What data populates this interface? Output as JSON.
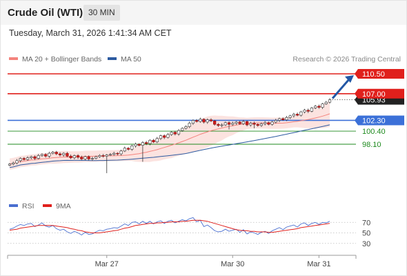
{
  "header": {
    "instrument": "Crude Oil (WTI)",
    "timeframe": "30 MIN"
  },
  "datetime": "Tuesday, March 31, 2026 1:41:34 AM CET",
  "legend": {
    "ma20_label": "MA 20 + Bollinger Bands",
    "ma20_color": "#f4837d",
    "ma50_label": "MA 50",
    "ma50_color": "#2c5aa0"
  },
  "source": "Research © 2026 Trading Central",
  "rsi_legend": {
    "rsi_label": "RSI",
    "rsi_color": "#4a6fd0",
    "ma_label": "9MA",
    "ma_color": "#e0201c"
  },
  "chart_data": [
    {
      "type": "candlestick",
      "x_labels": [
        "Mar 27",
        "Mar 30",
        "Mar 31"
      ],
      "current_price": "105.93",
      "levels": [
        {
          "value": 110.5,
          "label": "110.50",
          "style": "resistance",
          "color": "#e0201c"
        },
        {
          "value": 107.0,
          "label": "107.00",
          "style": "resistance",
          "color": "#e0201c"
        },
        {
          "value": 102.3,
          "label": "102.30",
          "style": "pivot",
          "color": "#3b70d8"
        },
        {
          "value": 100.4,
          "label": "100.40",
          "style": "support",
          "color": "#1e8a1e"
        },
        {
          "value": 98.1,
          "label": "98.10",
          "style": "support",
          "color": "#1e8a1e"
        }
      ],
      "close": [
        94.6,
        94.8,
        95.2,
        95.6,
        95.4,
        95.7,
        95.9,
        95.6,
        96.1,
        96.3,
        96.0,
        96.5,
        96.7,
        96.4,
        96.2,
        96.5,
        96.0,
        95.7,
        96.1,
        95.8,
        95.5,
        95.9,
        95.5,
        95.6,
        95.9,
        96.1,
        96.0,
        96.2,
        96.3,
        96.5,
        96.4,
        96.9,
        97.4,
        97.2,
        97.8,
        98.1,
        97.9,
        98.4,
        98.2,
        98.8,
        98.5,
        99.1,
        99.6,
        99.3,
        99.8,
        100.2,
        99.9,
        100.5,
        100.9,
        101.2,
        101.8,
        102.3,
        102.1,
        102.5,
        102.0,
        102.4,
        102.2,
        101.6,
        101.4,
        101.5,
        101.9,
        101.6,
        101.8,
        102.0,
        101.7,
        102.1,
        101.5,
        101.8,
        101.6,
        101.4,
        101.7,
        101.9,
        101.6,
        102.0,
        102.3,
        102.6,
        102.4,
        102.8,
        103.1,
        103.4,
        103.2,
        103.8,
        104.1,
        103.9,
        104.5,
        104.8,
        104.6,
        105.2,
        105.5,
        105.93
      ],
      "rsi_axis_ticks": [
        70,
        50,
        30
      ],
      "rsi": [
        57,
        59,
        63,
        66,
        64,
        67,
        68,
        62,
        65,
        69,
        63,
        61,
        64,
        58,
        55,
        57,
        52,
        49,
        53,
        50,
        46,
        51,
        47,
        48,
        52,
        55,
        54,
        57,
        58,
        60,
        59,
        63,
        67,
        64,
        70,
        71,
        67,
        72,
        68,
        72,
        67,
        71,
        73,
        68,
        72,
        74,
        69,
        72,
        75,
        73,
        77,
        79,
        71,
        74,
        62,
        65,
        60,
        54,
        52,
        53,
        57,
        53,
        55,
        57,
        51,
        56,
        48,
        52,
        50,
        47,
        51,
        53,
        49,
        54,
        57,
        60,
        56,
        61,
        63,
        65,
        61,
        67,
        69,
        64,
        68,
        70,
        66,
        70,
        69,
        72
      ],
      "rsi_ma": [
        55,
        56,
        57,
        59,
        60,
        61,
        62,
        63,
        64,
        64,
        64,
        64,
        64,
        63,
        62,
        61,
        60,
        58,
        57,
        55,
        54,
        52,
        51,
        50,
        50,
        50,
        51,
        52,
        53,
        54,
        55,
        57,
        59,
        60,
        62,
        64,
        65,
        66,
        67,
        68,
        68,
        69,
        69,
        70,
        70,
        71,
        71,
        71,
        72,
        72,
        73,
        74,
        74,
        74,
        73,
        72,
        70,
        68,
        66,
        64,
        62,
        60,
        58,
        56,
        55,
        54,
        54,
        53,
        53,
        52,
        52,
        52,
        51,
        51,
        52,
        53,
        54,
        55,
        56,
        57,
        58,
        60,
        61,
        62,
        63,
        64,
        65,
        66,
        67,
        68
      ]
    }
  ]
}
